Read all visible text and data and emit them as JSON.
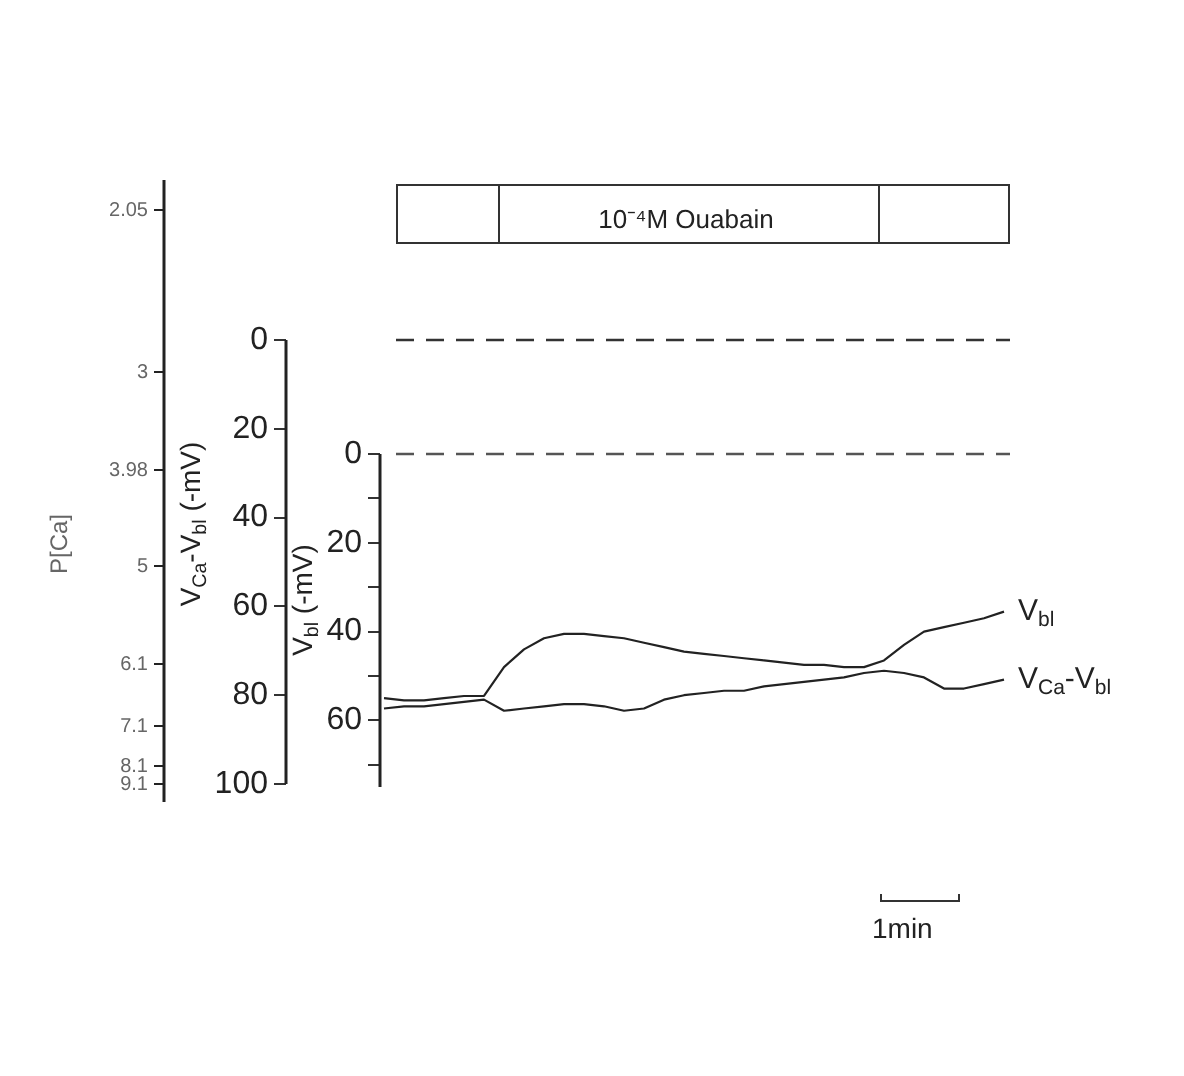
{
  "chart_data": {
    "type": "line",
    "ylabel": "V$_{Ca}$-V$_{bl}$ (-mV)",
    "y2label": "V$_{bl}$ (-mV)",
    "categories": [
      null,
      null,
      null,
      null,
      null,
      null,
      null,
      null,
      null,
      null,
      null,
      null,
      null,
      null,
      null,
      null,
      null,
      null,
      null,
      null,
      null,
      null,
      null,
      null,
      null,
      null,
      null,
      null,
      null,
      null,
      null,
      null
    ],
    "series": [
      {
        "name": "V$_{bl}$",
        "color": "#222222",
        "axis": "y2",
        "values": [
          55,
          55.5,
          55.5,
          55,
          54.5,
          54.5,
          48,
          44,
          41.5,
          40.5,
          40.5,
          41,
          41.5,
          42.5,
          43.5,
          44.5,
          45,
          45.5,
          46,
          46.5,
          47,
          47.5,
          47.5,
          48,
          48,
          46.5,
          43,
          40,
          39,
          38,
          37,
          35.5
        ]
      },
      {
        "name": "V$_{Ca}$-V$_{bl}$",
        "color": "#222222",
        "axis": "y",
        "values": [
          83,
          82.5,
          82.5,
          82,
          81.5,
          81,
          83.5,
          83,
          82.5,
          82,
          82,
          82.5,
          83.5,
          83,
          81,
          80,
          79.5,
          79,
          79,
          78,
          77.5,
          77,
          76.5,
          76,
          75,
          74.5,
          75,
          76,
          78.5,
          78.5,
          77.5,
          76.5
        ]
      }
    ],
    "ylim": [
      100,
      0
    ],
    "yticks": [
      0,
      20,
      40,
      60,
      80,
      100
    ],
    "y2lim": [
      75,
      0
    ],
    "y2ticks": [
      0,
      {
        "value": 10,
        "label": null
      },
      20,
      {
        "value": 30,
        "label": null
      },
      40,
      {
        "value": 50,
        "label": null
      },
      60,
      {
        "value": 70,
        "label": null
      }
    ],
    "ref_lines": [
      {
        "axis": "y",
        "value": 0,
        "line_style": "dashed",
        "color": "#333333"
      },
      {
        "axis": "y2",
        "value": 0,
        "line_style": "dashed",
        "color": "#555555"
      }
    ],
    "annotations": [
      "10⁻⁴M Ouabain",
      "1min",
      "P[Ca]",
      "2.05",
      "3",
      "3.98",
      "5",
      "6.1",
      "7.1",
      "8.1",
      "9.1"
    ],
    "tick_labels": "y",
    "grid": false,
    "legend": false,
    "marker": "none"
  }
}
